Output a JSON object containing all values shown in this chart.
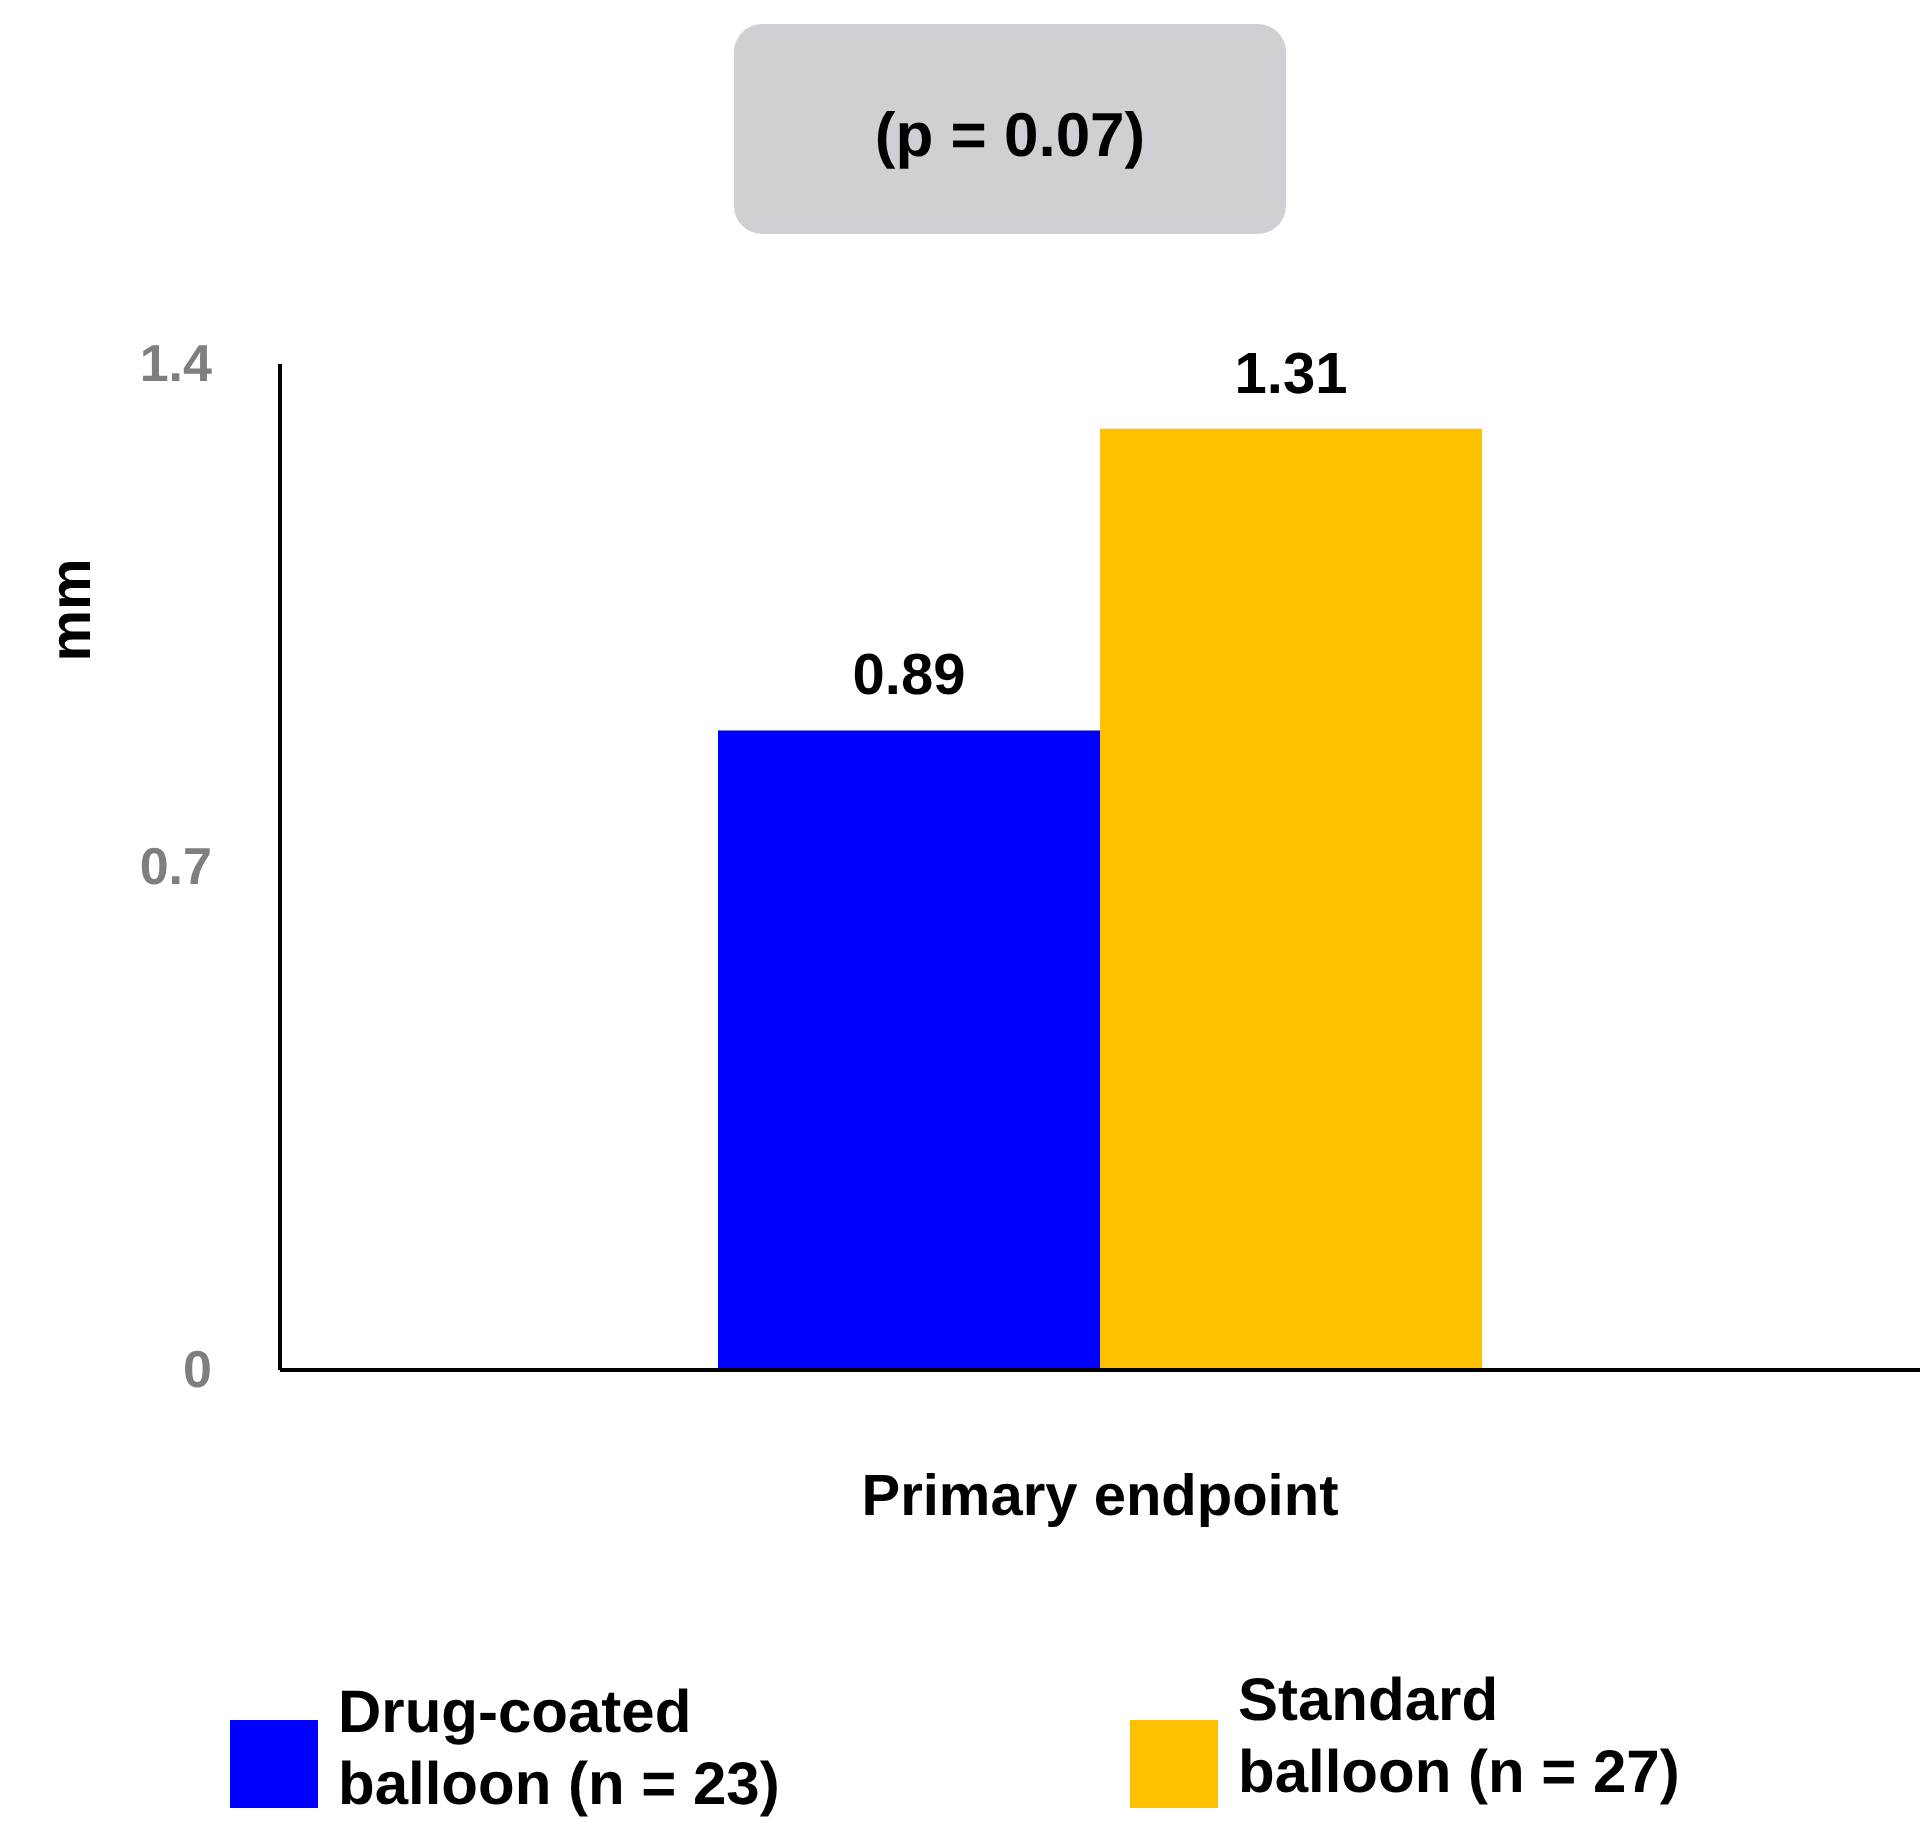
{
  "chart_data": {
    "type": "bar",
    "categories": [
      "Primary endpoint"
    ],
    "series": [
      {
        "name": "Drug-coated balloon (n = 23)",
        "color": "#0000ff",
        "values": [
          0.89
        ]
      },
      {
        "name": "Standard balloon (n = 27)",
        "color": "#ffc000",
        "values": [
          1.31
        ]
      }
    ],
    "ylabel": "mm",
    "ylim": [
      0,
      1.4
    ],
    "yticks": [
      0,
      0.7,
      1.4
    ],
    "data_labels": true,
    "legend": "bottom",
    "grid": false,
    "annotations": [
      "(p = 0.07)"
    ]
  }
}
